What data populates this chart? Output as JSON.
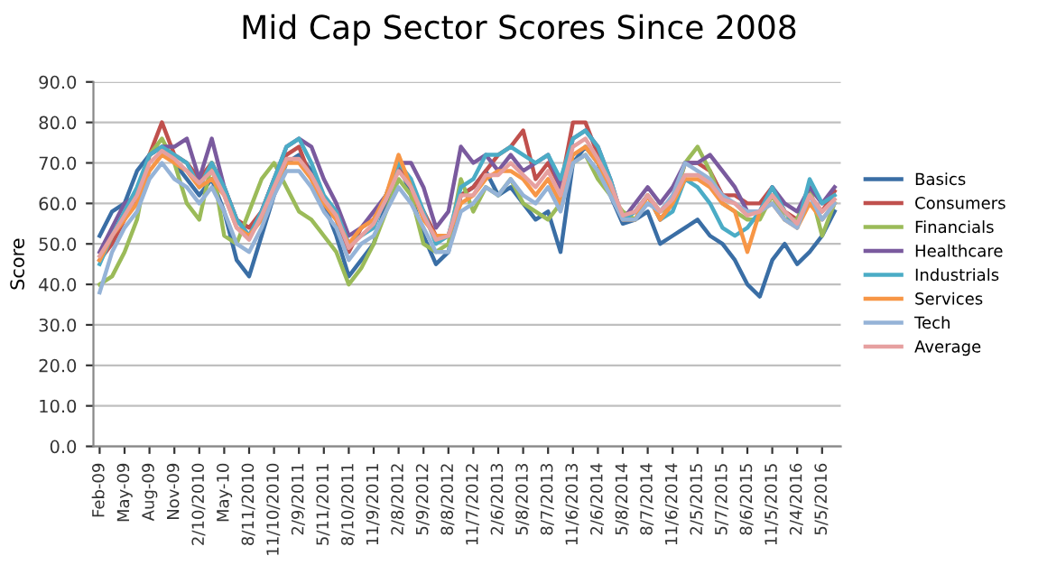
{
  "chart_data": {
    "type": "line",
    "title": "Mid Cap Sector Scores Since 2008",
    "ylabel": "Score",
    "categories": [
      "Feb-09",
      null,
      "May-09",
      null,
      "Aug-09",
      null,
      "Nov-09",
      null,
      "2/10/2010",
      null,
      "May-10",
      null,
      "8/11/2010",
      null,
      "11/10/2010",
      null,
      "2/9/2011",
      null,
      "5/11/2011",
      null,
      "8/10/2011",
      null,
      "11/9/2011",
      null,
      "2/8/2012",
      null,
      "5/9/2012",
      null,
      "8/8/2012",
      null,
      "11/7/2012",
      null,
      "2/6/2013",
      null,
      "5/8/2013",
      null,
      "8/7/2013",
      null,
      "11/6/2013",
      null,
      "2/6/2014",
      null,
      "5/8/2014",
      null,
      "8/7/2014",
      null,
      "11/6/2014",
      null,
      "2/5/2015",
      null,
      "5/7/2015",
      null,
      "8/6/2015",
      null,
      "11/5/2015",
      null,
      "2/4/2016",
      null,
      "5/5/2016",
      null
    ],
    "series": [
      {
        "name": "Basics",
        "color": "#3a6ea5",
        "values": [
          52,
          58,
          60,
          68,
          72,
          74,
          70,
          66,
          62,
          66,
          58,
          46,
          42,
          52,
          62,
          70,
          72,
          68,
          60,
          52,
          42,
          46,
          50,
          60,
          70,
          62,
          52,
          45,
          48,
          62,
          64,
          68,
          62,
          64,
          60,
          56,
          58,
          48,
          70,
          74,
          70,
          62,
          55,
          56,
          58,
          50,
          52,
          54,
          56,
          52,
          50,
          46,
          40,
          37,
          46,
          50,
          45,
          48,
          52,
          58
        ]
      },
      {
        "name": "Consumers",
        "color": "#c0504d",
        "values": [
          46,
          50,
          56,
          62,
          72,
          80,
          72,
          70,
          66,
          70,
          64,
          56,
          54,
          58,
          66,
          72,
          74,
          66,
          60,
          56,
          48,
          54,
          56,
          62,
          70,
          64,
          58,
          52,
          52,
          62,
          64,
          68,
          72,
          74,
          78,
          66,
          70,
          64,
          80,
          80,
          72,
          64,
          56,
          58,
          62,
          56,
          60,
          70,
          70,
          68,
          62,
          62,
          60,
          60,
          64,
          58,
          56,
          62,
          58,
          63
        ]
      },
      {
        "name": "Financials",
        "color": "#9bbb59",
        "values": [
          40,
          42,
          48,
          56,
          72,
          76,
          70,
          60,
          56,
          70,
          52,
          50,
          58,
          66,
          70,
          64,
          58,
          56,
          52,
          48,
          40,
          44,
          50,
          58,
          66,
          62,
          50,
          48,
          50,
          66,
          58,
          64,
          62,
          66,
          60,
          58,
          56,
          60,
          70,
          72,
          66,
          62,
          58,
          56,
          62,
          58,
          60,
          70,
          74,
          68,
          60,
          58,
          56,
          56,
          62,
          56,
          56,
          64,
          52,
          60
        ]
      },
      {
        "name": "Healthcare",
        "color": "#7a5a9e",
        "values": [
          48,
          54,
          60,
          62,
          72,
          74,
          74,
          76,
          66,
          76,
          64,
          56,
          52,
          58,
          66,
          74,
          76,
          74,
          66,
          60,
          52,
          54,
          58,
          62,
          70,
          70,
          64,
          54,
          58,
          74,
          70,
          72,
          68,
          72,
          68,
          70,
          72,
          64,
          76,
          78,
          74,
          66,
          56,
          60,
          64,
          60,
          64,
          70,
          70,
          72,
          68,
          64,
          58,
          58,
          64,
          60,
          58,
          64,
          60,
          64
        ]
      },
      {
        "name": "Industrials",
        "color": "#4bacc6",
        "values": [
          45,
          52,
          58,
          64,
          72,
          74,
          72,
          70,
          64,
          70,
          64,
          56,
          52,
          58,
          66,
          74,
          76,
          70,
          62,
          58,
          50,
          52,
          54,
          62,
          70,
          66,
          58,
          50,
          52,
          64,
          66,
          72,
          72,
          74,
          72,
          70,
          72,
          66,
          76,
          78,
          74,
          66,
          56,
          58,
          62,
          56,
          58,
          66,
          64,
          60,
          54,
          52,
          54,
          58,
          64,
          58,
          54,
          66,
          60,
          62
        ]
      },
      {
        "name": "Services",
        "color": "#f79646",
        "values": [
          46,
          52,
          56,
          60,
          68,
          72,
          70,
          68,
          64,
          66,
          62,
          54,
          52,
          56,
          64,
          70,
          70,
          66,
          60,
          56,
          50,
          54,
          56,
          62,
          72,
          64,
          56,
          52,
          52,
          60,
          62,
          66,
          68,
          68,
          66,
          62,
          66,
          60,
          72,
          74,
          70,
          64,
          56,
          56,
          62,
          56,
          60,
          66,
          66,
          64,
          60,
          58,
          48,
          58,
          60,
          56,
          54,
          60,
          56,
          60
        ]
      },
      {
        "name": "Tech",
        "color": "#95b3d7",
        "values": [
          38,
          48,
          54,
          58,
          66,
          70,
          66,
          64,
          60,
          64,
          58,
          50,
          48,
          54,
          62,
          68,
          68,
          64,
          58,
          54,
          46,
          50,
          52,
          58,
          64,
          60,
          54,
          48,
          48,
          58,
          60,
          64,
          62,
          66,
          62,
          60,
          64,
          58,
          70,
          72,
          68,
          62,
          56,
          56,
          60,
          58,
          62,
          70,
          68,
          66,
          62,
          60,
          58,
          58,
          60,
          56,
          54,
          62,
          56,
          60
        ]
      },
      {
        "name": "Average",
        "color": "#e6a0a0",
        "values": [
          47,
          52,
          57,
          62,
          70,
          73,
          71,
          68,
          65,
          68,
          62,
          54,
          51,
          57,
          64,
          71,
          71,
          67,
          61,
          57,
          49,
          52,
          55,
          61,
          68,
          64,
          57,
          51,
          52,
          62,
          62,
          67,
          67,
          70,
          67,
          64,
          68,
          62,
          74,
          76,
          71,
          65,
          57,
          58,
          62,
          58,
          61,
          67,
          67,
          65,
          61,
          60,
          57,
          58,
          62,
          58,
          55,
          62,
          58,
          61
        ]
      }
    ],
    "ylim": [
      0,
      90
    ],
    "yticks": [
      {
        "value": 0,
        "label": "0.0"
      },
      {
        "value": 10,
        "label": "10.0"
      },
      {
        "value": 20,
        "label": "20.0"
      },
      {
        "value": 30,
        "label": "30.0"
      },
      {
        "value": 40,
        "label": "40.0"
      },
      {
        "value": 50,
        "label": "50.0"
      },
      {
        "value": 60,
        "label": "60.0"
      },
      {
        "value": 70,
        "label": "70.0"
      },
      {
        "value": 80,
        "label": "80.0"
      },
      {
        "value": 90,
        "label": "90.0"
      }
    ],
    "grid": "y",
    "legend": "right",
    "marker": "none",
    "line_style": "solid"
  }
}
